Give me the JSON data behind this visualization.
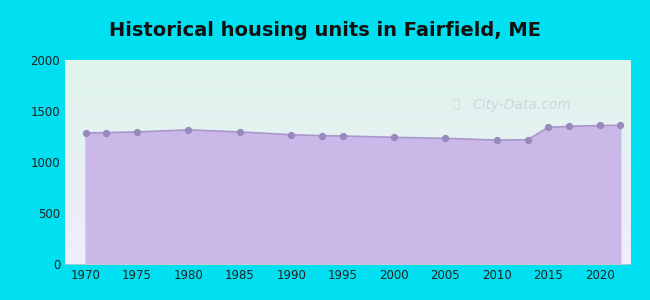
{
  "title": "Historical housing units in Fairfield, ME",
  "title_fontsize": 14,
  "title_fontweight": "bold",
  "background_outer": "#00e0f0",
  "background_inner_top": "#dff5ea",
  "background_inner_bottom": "#f0ecff",
  "fill_color": "#c9b8e8",
  "fill_alpha": 1.0,
  "line_color": "#a898cc",
  "marker_color": "#9888bb",
  "marker_size": 18,
  "years": [
    1970,
    1972,
    1975,
    1980,
    1985,
    1990,
    1993,
    1995,
    2000,
    2005,
    2010,
    2013,
    2015,
    2017,
    2020,
    2022
  ],
  "values": [
    1285,
    1288,
    1295,
    1315,
    1295,
    1268,
    1258,
    1255,
    1242,
    1232,
    1215,
    1218,
    1340,
    1350,
    1358,
    1360
  ],
  "xlim": [
    1968,
    2023
  ],
  "ylim": [
    0,
    2000
  ],
  "xticks": [
    1970,
    1975,
    1980,
    1985,
    1990,
    1995,
    2000,
    2005,
    2010,
    2015,
    2020
  ],
  "yticks": [
    0,
    500,
    1000,
    1500,
    2000
  ],
  "watermark": "City-Data.com",
  "watermark_color": "#b8ccd8",
  "watermark_alpha": 0.65,
  "watermark_fontsize": 10
}
